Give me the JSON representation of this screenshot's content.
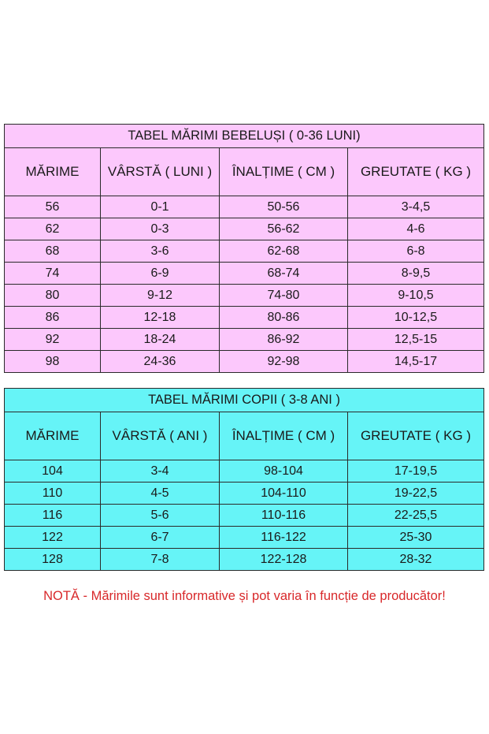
{
  "baby_table": {
    "title": "TABEL MĂRIMI BEBELUȘI ( 0-36 LUNI)",
    "color": "#fcc8fc",
    "headers": [
      "MĂRIME",
      "VÂRSTĂ ( LUNI )",
      "ÎNALȚIME ( CM )",
      "GREUTATE ( KG )"
    ],
    "rows": [
      [
        "56",
        "0-1",
        "50-56",
        "3-4,5"
      ],
      [
        "62",
        "0-3",
        "56-62",
        "4-6"
      ],
      [
        "68",
        "3-6",
        "62-68",
        "6-8"
      ],
      [
        "74",
        "6-9",
        "68-74",
        "8-9,5"
      ],
      [
        "80",
        "9-12",
        "74-80",
        "9-10,5"
      ],
      [
        "86",
        "12-18",
        "80-86",
        "10-12,5"
      ],
      [
        "92",
        "18-24",
        "86-92",
        "12,5-15"
      ],
      [
        "98",
        "24-36",
        "92-98",
        "14,5-17"
      ]
    ]
  },
  "kids_table": {
    "title": "TABEL MĂRIMI COPII ( 3-8 ANI )",
    "color": "#66f4f7",
    "headers": [
      "MĂRIME",
      "VÂRSTĂ ( ANI )",
      "ÎNALȚIME ( CM )",
      "GREUTATE ( KG )"
    ],
    "rows": [
      [
        "104",
        "3-4",
        "98-104",
        "17-19,5"
      ],
      [
        "110",
        "4-5",
        "104-110",
        "19-22,5"
      ],
      [
        "116",
        "5-6",
        "110-116",
        "22-25,5"
      ],
      [
        "122",
        "6-7",
        "116-122",
        "25-30"
      ],
      [
        "128",
        "7-8",
        "122-128",
        "28-32"
      ]
    ]
  },
  "note": "NOTĂ - Mărimile sunt informative și pot varia în funcție de producător!",
  "note_color": "#d8282a"
}
